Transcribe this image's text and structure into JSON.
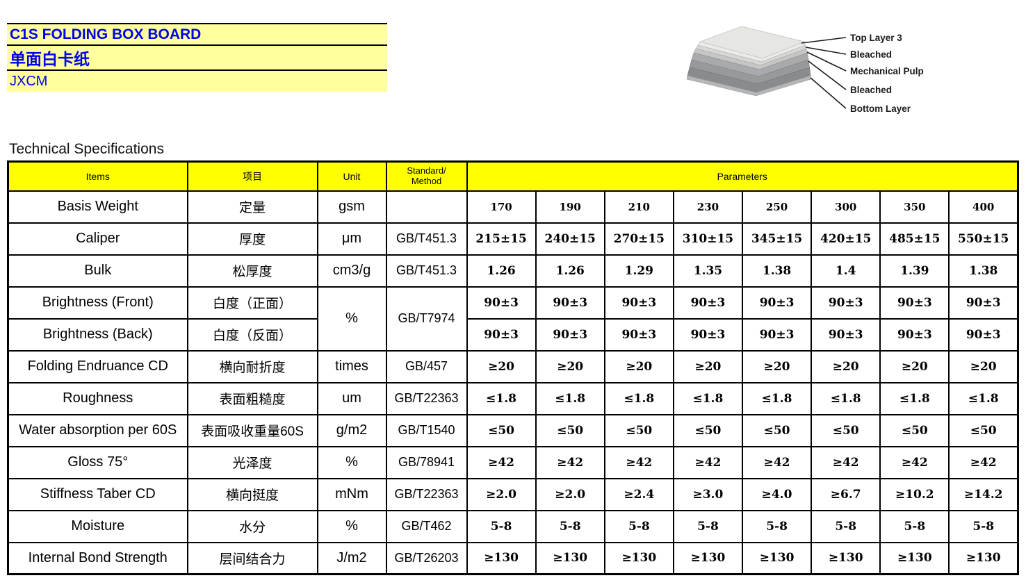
{
  "title_block": {
    "product_en": "C1S FOLDING BOX BOARD",
    "product_cn": "单面白卡纸",
    "company": "JXCM"
  },
  "diagram": {
    "labels": [
      "Top Layer 3",
      "Bleached",
      "Mechanical Pulp",
      "Bleached",
      "Bottom Layer"
    ],
    "layer_colors": [
      "#e6e6e3",
      "#ebece9",
      "#d7d8d5",
      "#c6c7c5",
      "#a8aaac",
      "#97999c",
      "#898b8e"
    ]
  },
  "section": {
    "title": "Technical Specifications"
  },
  "table": {
    "headers": {
      "items": "Items",
      "project_cn": "项目",
      "unit": "Unit",
      "standard_line1": "Standard/",
      "standard_line2": "Method",
      "parameters": "Parameters"
    },
    "rows": [
      {
        "item": "Basis Weight",
        "cn": "定量",
        "unit": "gsm",
        "standard": "",
        "values": [
          "170",
          "190",
          "210",
          "230",
          "250",
          "300",
          "350",
          "400"
        ]
      },
      {
        "item": "Caliper",
        "cn": "厚度",
        "unit": "μm",
        "standard": "GB/T451.3",
        "values": [
          "215±15",
          "240±15",
          "270±15",
          "310±15",
          "345±15",
          "420±15",
          "485±15",
          "550±15"
        ]
      },
      {
        "item": "Bulk",
        "cn": "松厚度",
        "unit": "cm3/g",
        "standard": "GB/T451.3",
        "values": [
          "1.26",
          "1.26",
          "1.29",
          "1.35",
          "1.38",
          "1.4",
          "1.39",
          "1.38"
        ]
      },
      {
        "item": "Brightness (Front)",
        "cn": "白度（正面）",
        "unit": "%",
        "standard": "GB/T7974",
        "values": [
          "90±3",
          "90±3",
          "90±3",
          "90±3",
          "90±3",
          "90±3",
          "90±3",
          "90±3"
        ]
      },
      {
        "item": "Brightness (Back)",
        "cn": "白度（反面）",
        "unit": "",
        "standard": "",
        "values": [
          "90±3",
          "90±3",
          "90±3",
          "90±3",
          "90±3",
          "90±3",
          "90±3",
          "90±3"
        ]
      },
      {
        "item": "Folding Endruance CD",
        "cn": "横向耐折度",
        "unit": "times",
        "standard": "GB/457",
        "values": [
          "≥20",
          "≥20",
          "≥20",
          "≥20",
          "≥20",
          "≥20",
          "≥20",
          "≥20"
        ]
      },
      {
        "item": "Roughness",
        "cn": "表面粗糙度",
        "unit": "um",
        "standard": "GB/T22363",
        "values": [
          "≤1.8",
          "≤1.8",
          "≤1.8",
          "≤1.8",
          "≤1.8",
          "≤1.8",
          "≤1.8",
          "≤1.8"
        ]
      },
      {
        "item": "Water absorption per 60S",
        "cn": "表面吸收重量60S",
        "unit": "g/m2",
        "standard": "GB/T1540",
        "values": [
          "≤50",
          "≤50",
          "≤50",
          "≤50",
          "≤50",
          "≤50",
          "≤50",
          "≤50"
        ]
      },
      {
        "item": "Gloss 75°",
        "cn": "光泽度",
        "unit": "%",
        "standard": "GB/78941",
        "values": [
          "≥42",
          "≥42",
          "≥42",
          "≥42",
          "≥42",
          "≥42",
          "≥42",
          "≥42"
        ]
      },
      {
        "item": "Stiffness Taber CD",
        "cn": "横向挺度",
        "unit": "mNm",
        "standard": "GB/T22363",
        "values": [
          "≥2.0",
          "≥2.0",
          "≥2.4",
          "≥3.0",
          "≥4.0",
          "≥6.7",
          "≥10.2",
          "≥14.2"
        ]
      },
      {
        "item": "Moisture",
        "cn": "水分",
        "unit": "%",
        "standard": "GB/T462",
        "values": [
          "5-8",
          "5-8",
          "5-8",
          "5-8",
          "5-8",
          "5-8",
          "5-8",
          "5-8"
        ]
      },
      {
        "item": "Internal Bond Strength",
        "cn": "层间结合力",
        "unit": "J/m2",
        "standard": "GB/T26203",
        "values": [
          "≥130",
          "≥130",
          "≥130",
          "≥130",
          "≥130",
          "≥130",
          "≥130",
          "≥130"
        ]
      }
    ]
  },
  "colors": {
    "title_bg": "#ffff9e",
    "table_header_bg": "#ffff00",
    "title_text": "#0000f0",
    "border": "#000000"
  }
}
